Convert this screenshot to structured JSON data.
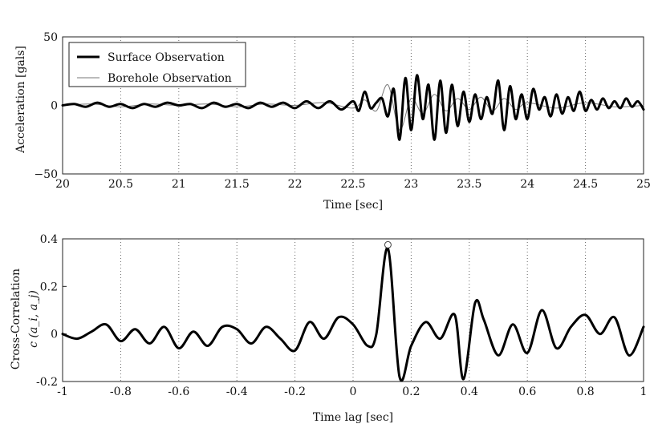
{
  "chart_data": [
    {
      "type": "line",
      "title": "",
      "xlabel": "Time [sec]",
      "ylabel": "Acceleration [gals]",
      "xlim": [
        20,
        25
      ],
      "ylim": [
        -50,
        50
      ],
      "xticks": [
        20,
        20.5,
        21,
        21.5,
        22,
        22.5,
        23,
        23.5,
        24,
        24.5,
        25
      ],
      "xtick_labels": [
        "20",
        "20.5",
        "21",
        "21.5",
        "22",
        "22.5",
        "23",
        "23.5",
        "24",
        "24.5",
        "25"
      ],
      "yticks": [
        -50,
        0,
        50
      ],
      "ytick_labels": [
        "−50",
        "0",
        "50"
      ],
      "grid": "vertical dotted",
      "legend_position": "top-left",
      "series": [
        {
          "name": "Surface Observation",
          "color": "#000000",
          "style": "thick solid",
          "x": [
            20.0,
            20.1,
            20.2,
            20.3,
            20.4,
            20.5,
            20.6,
            20.7,
            20.8,
            20.9,
            21.0,
            21.1,
            21.2,
            21.3,
            21.4,
            21.5,
            21.6,
            21.7,
            21.8,
            21.9,
            22.0,
            22.1,
            22.2,
            22.3,
            22.4,
            22.5,
            22.55,
            22.6,
            22.65,
            22.7,
            22.75,
            22.8,
            22.85,
            22.9,
            22.95,
            23.0,
            23.05,
            23.1,
            23.15,
            23.2,
            23.25,
            23.3,
            23.35,
            23.4,
            23.45,
            23.5,
            23.55,
            23.6,
            23.65,
            23.7,
            23.75,
            23.8,
            23.85,
            23.9,
            23.95,
            24.0,
            24.05,
            24.1,
            24.15,
            24.2,
            24.25,
            24.3,
            24.35,
            24.4,
            24.45,
            24.5,
            24.55,
            24.6,
            24.65,
            24.7,
            24.75,
            24.8,
            24.85,
            24.9,
            24.95,
            25.0
          ],
          "values": [
            0,
            1,
            -1,
            2,
            -1,
            1,
            -2,
            1,
            -1,
            2,
            0,
            1,
            -2,
            2,
            -1,
            1,
            -2,
            2,
            -1,
            2,
            -2,
            3,
            -2,
            3,
            -3,
            3,
            -4,
            10,
            -2,
            2,
            5,
            -8,
            12,
            -25,
            20,
            -18,
            22,
            -10,
            15,
            -25,
            18,
            -20,
            15,
            -15,
            10,
            -12,
            8,
            -10,
            6,
            -6,
            18,
            -18,
            14,
            -10,
            8,
            -10,
            12,
            -3,
            6,
            -8,
            8,
            -6,
            6,
            -4,
            10,
            -4,
            4,
            -3,
            5,
            -2,
            3,
            -2,
            5,
            -1,
            3,
            -3
          ]
        },
        {
          "name": "Borehole Observation",
          "color": "#777777",
          "style": "thin solid",
          "x": [
            20.0,
            20.25,
            20.5,
            20.75,
            21.0,
            21.25,
            21.5,
            21.75,
            22.0,
            22.25,
            22.5,
            22.6,
            22.7,
            22.8,
            22.9,
            23.0,
            23.1,
            23.2,
            23.3,
            23.4,
            23.5,
            23.6,
            23.7,
            23.8,
            23.9,
            24.0,
            24.25,
            24.5,
            24.75,
            25.0
          ],
          "values": [
            0,
            1,
            -1,
            1,
            0,
            1,
            -1,
            1,
            0,
            2,
            -2,
            4,
            -4,
            15,
            -18,
            5,
            -6,
            8,
            -4,
            5,
            -3,
            6,
            -4,
            5,
            -3,
            2,
            -2,
            2,
            -1,
            0
          ]
        }
      ]
    },
    {
      "type": "line",
      "title": "",
      "xlabel": "Time lag [sec]",
      "ylabel": "Cross-Correlation",
      "ylabel2": "c (a_i, a_j)",
      "xlim": [
        -1,
        1
      ],
      "ylim": [
        -0.2,
        0.4
      ],
      "xticks": [
        -1,
        -0.8,
        -0.6,
        -0.4,
        -0.2,
        0,
        0.2,
        0.4,
        0.6,
        0.8,
        1
      ],
      "xtick_labels": [
        "-1",
        "-0.8",
        "-0.6",
        "-0.4",
        "-0.2",
        "0",
        "0.2",
        "0.4",
        "0.6",
        "0.8",
        "1"
      ],
      "yticks": [
        -0.2,
        0,
        0.2,
        0.4
      ],
      "ytick_labels": [
        "-0.2",
        "0",
        "0.2",
        "0.4"
      ],
      "grid": "vertical dotted",
      "peak_marker": {
        "x": 0.12,
        "y": 0.375
      },
      "series": [
        {
          "name": "",
          "color": "#000000",
          "style": "thick solid",
          "x": [
            -1.0,
            -0.95,
            -0.9,
            -0.85,
            -0.8,
            -0.75,
            -0.7,
            -0.65,
            -0.6,
            -0.55,
            -0.5,
            -0.45,
            -0.4,
            -0.35,
            -0.3,
            -0.25,
            -0.2,
            -0.15,
            -0.1,
            -0.05,
            0.0,
            0.05,
            0.08,
            0.12,
            0.16,
            0.2,
            0.25,
            0.3,
            0.35,
            0.38,
            0.42,
            0.45,
            0.5,
            0.55,
            0.6,
            0.65,
            0.7,
            0.75,
            0.8,
            0.85,
            0.9,
            0.95,
            1.0
          ],
          "values": [
            0.0,
            -0.02,
            0.01,
            0.04,
            -0.03,
            0.02,
            -0.04,
            0.03,
            -0.06,
            0.01,
            -0.05,
            0.03,
            0.02,
            -0.04,
            0.03,
            -0.02,
            -0.07,
            0.05,
            -0.02,
            0.07,
            0.04,
            -0.05,
            0.0,
            0.36,
            -0.18,
            -0.05,
            0.05,
            -0.02,
            0.08,
            -0.19,
            0.13,
            0.06,
            -0.09,
            0.04,
            -0.08,
            0.1,
            -0.06,
            0.03,
            0.08,
            0.0,
            0.07,
            -0.09,
            0.03
          ]
        }
      ]
    }
  ]
}
